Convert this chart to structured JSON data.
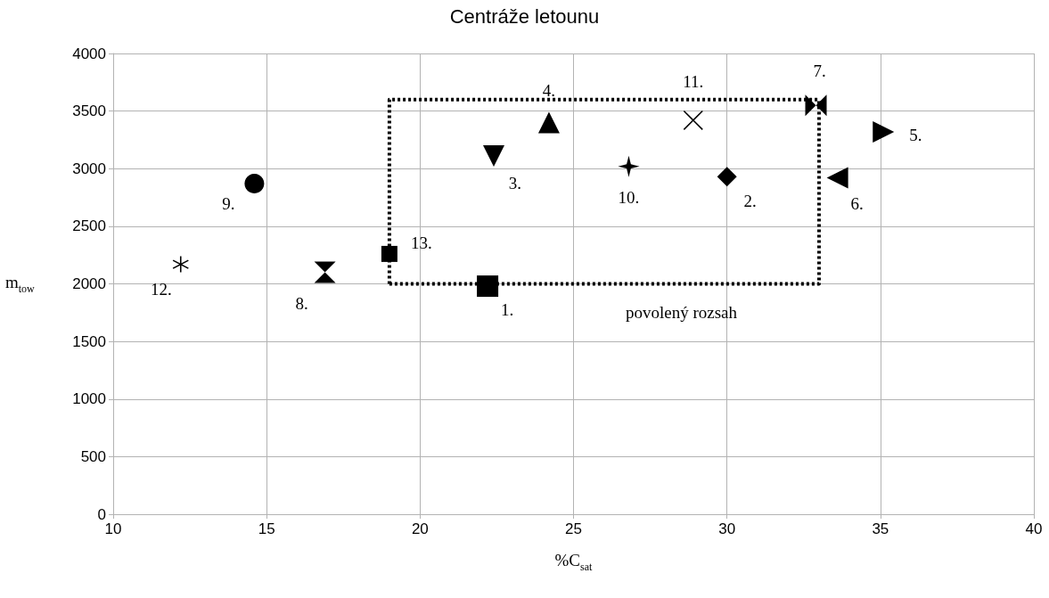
{
  "chart_data": {
    "type": "scatter",
    "title": "Centráže letounu",
    "xlabel": "%C$_{sat}$",
    "ylabel": "m$_{tow}$",
    "xlim": [
      10,
      40
    ],
    "xticks": [
      10,
      15,
      20,
      25,
      30,
      35,
      40
    ],
    "ylim": [
      0,
      4000
    ],
    "yticks": [
      0,
      500,
      1000,
      1500,
      2000,
      2500,
      3000,
      3500,
      4000
    ],
    "grid": true,
    "series": [
      {
        "name": "povolený rozsah",
        "type": "line",
        "x": [
          19,
          33,
          33
        ],
        "values": [
          2000,
          2000,
          3600
        ],
        "color": "#000000",
        "line_style": "dotted",
        "marker": "none"
      },
      {
        "type": "line",
        "x": [
          19,
          19,
          33
        ],
        "values": [
          2000,
          3600,
          3600
        ],
        "color": "#000000",
        "line_style": "dotted",
        "marker": "none"
      },
      {
        "name": "1.",
        "x": [
          22.2
        ],
        "values": [
          1980
        ],
        "color": "#000000",
        "marker": "square"
      },
      {
        "name": "2.",
        "x": [
          30.0
        ],
        "values": [
          2930
        ],
        "color": "#000000",
        "marker": "diamond"
      },
      {
        "name": "3.",
        "x": [
          22.4
        ],
        "values": [
          3110
        ],
        "color": "#000000",
        "marker": "triangle"
      },
      {
        "name": "4.",
        "x": [
          24.2
        ],
        "values": [
          3400
        ],
        "color": "#000000",
        "marker": "triangle"
      },
      {
        "name": "5.",
        "x": [
          35.1
        ],
        "values": [
          3320
        ],
        "color": "#000000",
        "marker": "triangle"
      },
      {
        "name": "6.",
        "x": [
          33.6
        ],
        "values": [
          2920
        ],
        "color": "#000000",
        "marker": "triangle"
      },
      {
        "name": "7.",
        "x": [
          32.9
        ],
        "values": [
          3550
        ],
        "color": "#000000"
      },
      {
        "name": "8.",
        "x": [
          16.9
        ],
        "values": [
          2100
        ],
        "color": "#000000"
      },
      {
        "name": "9.",
        "x": [
          14.6
        ],
        "values": [
          2870
        ],
        "color": "#000000",
        "marker": "circle"
      },
      {
        "name": "10.",
        "x": [
          26.8
        ],
        "values": [
          3020
        ],
        "color": "#000000",
        "marker": "star"
      },
      {
        "name": "11.",
        "x": [
          28.9
        ],
        "values": [
          3420
        ],
        "color": "#000000",
        "marker": "cross"
      },
      {
        "name": "12.",
        "x": [
          12.2
        ],
        "values": [
          2170
        ],
        "color": "#000000"
      },
      {
        "name": "13.",
        "x": [
          19.0
        ],
        "values": [
          2260
        ],
        "color": "#000000"
      }
    ]
  }
}
